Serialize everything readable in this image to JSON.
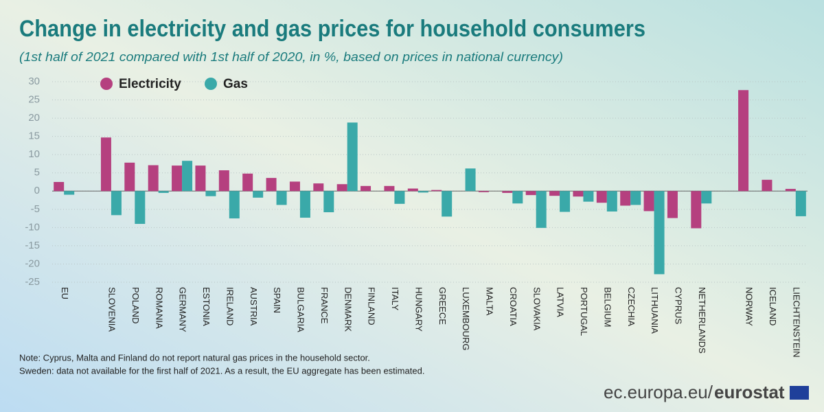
{
  "chart_data": {
    "type": "bar",
    "title": "Change in electricity and gas prices for household consumers",
    "subtitle": "(1st half of 2021 compared with 1st half of 2020, in %, based on prices in national currency)",
    "categories": [
      "EU",
      null,
      "SLOVENIA",
      "POLAND",
      "ROMANIA",
      "GERMANY",
      "ESTONIA",
      "IRELAND",
      "AUSTRIA",
      "SPAIN",
      "BULGARIA",
      "FRANCE",
      "DENMARK",
      "FINLAND",
      "ITALY",
      "HUNGARY",
      "GREECE",
      "LUXEMBOURG",
      "MALTA",
      "CROATIA",
      "SLOVAKIA",
      "LATVIA",
      "PORTUGAL",
      "BELGIUM",
      "CZECHIA",
      "LITHUANIA",
      "CYPRUS",
      "NETHERLANDS",
      null,
      "NORWAY",
      "ICELAND",
      "LIECHTENSTEIN"
    ],
    "series": [
      {
        "name": "Electricity",
        "color": "#b5407f",
        "values": [
          2.5,
          null,
          14.7,
          7.8,
          7.1,
          7.0,
          7.0,
          5.7,
          4.8,
          3.6,
          2.6,
          2.1,
          1.9,
          1.4,
          1.4,
          0.7,
          0.3,
          0.0,
          -0.3,
          -0.5,
          -1.1,
          -1.3,
          -1.5,
          -3.2,
          -4.0,
          -5.5,
          -7.4,
          -10.2,
          null,
          27.7,
          3.1,
          0.6
        ]
      },
      {
        "name": "Gas",
        "color": "#3aa9a9",
        "values": [
          -1.0,
          null,
          -6.6,
          -9.0,
          -0.5,
          8.3,
          -1.4,
          -7.5,
          -1.8,
          -3.8,
          -7.3,
          -5.8,
          18.8,
          null,
          -3.5,
          -0.4,
          -7.0,
          6.2,
          null,
          -3.4,
          -10.1,
          -5.7,
          -2.9,
          -5.6,
          -3.8,
          -22.8,
          null,
          -3.4,
          null,
          null,
          null,
          -6.9
        ]
      }
    ],
    "ylim": [
      -25,
      30
    ],
    "yticks": [
      -25,
      -20,
      -15,
      -10,
      -5,
      0,
      5,
      10,
      15,
      20,
      25,
      30
    ],
    "grid": true,
    "notes": [
      "Note: Cyprus, Malta and Finland do not report natural gas prices in the household sector.",
      "Sweden: data not available for the first half of 2021. As a result, the EU aggregate has been estimated."
    ],
    "source": {
      "site": "ec.europa.eu/",
      "brand": "eurostat"
    }
  }
}
